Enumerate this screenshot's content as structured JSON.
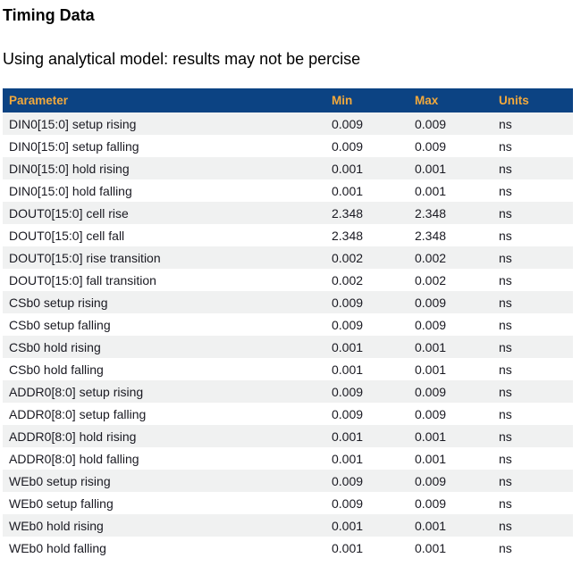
{
  "page": {
    "title": "Timing Data",
    "subtitle": "Using analytical model: results may not be percise"
  },
  "colors": {
    "header_bg": "#0c4383",
    "header_text": "#f2a93c",
    "row_alt_bg": "#f0f1f1",
    "row_text": "#1a1a22"
  },
  "table": {
    "columns": [
      "Parameter",
      "Min",
      "Max",
      "Units"
    ],
    "rows": [
      {
        "parameter": "DIN0[15:0] setup rising",
        "min": "0.009",
        "max": "0.009",
        "units": "ns"
      },
      {
        "parameter": "DIN0[15:0] setup falling",
        "min": "0.009",
        "max": "0.009",
        "units": "ns"
      },
      {
        "parameter": "DIN0[15:0] hold rising",
        "min": "0.001",
        "max": "0.001",
        "units": "ns"
      },
      {
        "parameter": "DIN0[15:0] hold falling",
        "min": "0.001",
        "max": "0.001",
        "units": "ns"
      },
      {
        "parameter": "DOUT0[15:0] cell rise",
        "min": "2.348",
        "max": "2.348",
        "units": "ns"
      },
      {
        "parameter": "DOUT0[15:0] cell fall",
        "min": "2.348",
        "max": "2.348",
        "units": "ns"
      },
      {
        "parameter": "DOUT0[15:0] rise transition",
        "min": "0.002",
        "max": "0.002",
        "units": "ns"
      },
      {
        "parameter": "DOUT0[15:0] fall transition",
        "min": "0.002",
        "max": "0.002",
        "units": "ns"
      },
      {
        "parameter": "CSb0 setup rising",
        "min": "0.009",
        "max": "0.009",
        "units": "ns"
      },
      {
        "parameter": "CSb0 setup falling",
        "min": "0.009",
        "max": "0.009",
        "units": "ns"
      },
      {
        "parameter": "CSb0 hold rising",
        "min": "0.001",
        "max": "0.001",
        "units": "ns"
      },
      {
        "parameter": "CSb0 hold falling",
        "min": "0.001",
        "max": "0.001",
        "units": "ns"
      },
      {
        "parameter": "ADDR0[8:0] setup rising",
        "min": "0.009",
        "max": "0.009",
        "units": "ns"
      },
      {
        "parameter": "ADDR0[8:0] setup falling",
        "min": "0.009",
        "max": "0.009",
        "units": "ns"
      },
      {
        "parameter": "ADDR0[8:0] hold rising",
        "min": "0.001",
        "max": "0.001",
        "units": "ns"
      },
      {
        "parameter": "ADDR0[8:0] hold falling",
        "min": "0.001",
        "max": "0.001",
        "units": "ns"
      },
      {
        "parameter": "WEb0 setup rising",
        "min": "0.009",
        "max": "0.009",
        "units": "ns"
      },
      {
        "parameter": "WEb0 setup falling",
        "min": "0.009",
        "max": "0.009",
        "units": "ns"
      },
      {
        "parameter": "WEb0 hold rising",
        "min": "0.001",
        "max": "0.001",
        "units": "ns"
      },
      {
        "parameter": "WEb0 hold falling",
        "min": "0.001",
        "max": "0.001",
        "units": "ns"
      }
    ]
  }
}
